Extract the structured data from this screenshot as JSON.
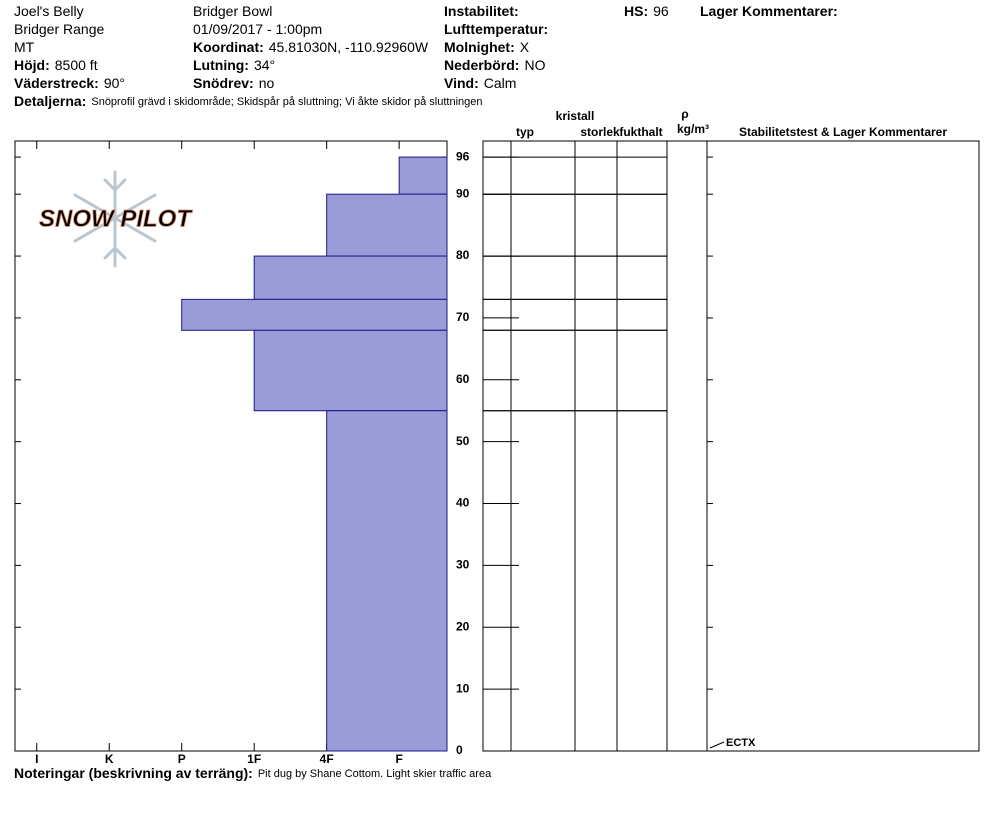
{
  "header": {
    "columns": [
      [
        {
          "value": "Joel's Belly"
        },
        {
          "value": "Bridger Range"
        },
        {
          "value": "MT"
        },
        {
          "label": "Höjd:",
          "value": "8500 ft"
        },
        {
          "label": "Väderstreck:",
          "value": "90°"
        }
      ],
      [
        {
          "value": "Bridger Bowl"
        },
        {
          "value": "01/09/2017 - 1:00pm"
        },
        {
          "label": "Koordinat:",
          "value": "45.81030N, -110.92960W"
        },
        {
          "label": "Lutning:",
          "value": "34°"
        },
        {
          "label": "Snödrev:",
          "value": "no"
        }
      ],
      [
        {
          "label": "Instabilitet:"
        },
        {
          "label": "Lufttemperatur:"
        },
        {
          "label": "Molnighet:",
          "value": "X"
        },
        {
          "label": "Nederbörd:",
          "value": "NO"
        },
        {
          "label": "Vind:",
          "value": "Calm"
        }
      ],
      [
        {
          "label": "HS:",
          "value": "96"
        }
      ],
      [
        {
          "label": "Lager Kommentarer:"
        }
      ]
    ],
    "details": {
      "label": "Detaljerna:",
      "value": "Snöprofil grävd i skidområde;  Skidspår på sluttning;  Vi åkte skidor på sluttningen"
    },
    "notes": {
      "label": "Noteringar (beskrivning av terräng):",
      "value": "Pit dug by Shane Cottom. Light skier traffic area"
    },
    "logo": "SNOW PILOT"
  },
  "chart_data": {
    "type": "snowprofile",
    "color": "#9b9bd7",
    "edge_color": "#1a1a8a",
    "xlim": [
      6.3,
      0.34
    ],
    "xticks": [
      {
        "value": 6,
        "label": "I"
      },
      {
        "value": 5,
        "label": "K"
      },
      {
        "value": 4,
        "label": "P"
      },
      {
        "value": 3,
        "label": "1F"
      },
      {
        "value": 2,
        "label": "4F"
      },
      {
        "value": 1,
        "label": "F"
      }
    ],
    "ylim": [
      0,
      98.6
    ],
    "yticks": [
      0,
      10,
      20,
      30,
      40,
      50,
      60,
      70,
      80,
      90,
      96
    ],
    "layers": [
      {
        "top": 96,
        "bottom": 90,
        "hardness": 1
      },
      {
        "top": 90,
        "bottom": 80,
        "hardness": 2
      },
      {
        "top": 80,
        "bottom": 73,
        "hardness": 3
      },
      {
        "top": 73,
        "bottom": 68,
        "hardness": 4
      },
      {
        "top": 68,
        "bottom": 55,
        "hardness": 3
      },
      {
        "top": 55,
        "bottom": 0,
        "hardness": 2
      }
    ],
    "table_headers": [
      "typ",
      "kristall",
      "storlek",
      "fukthalt",
      "ρ",
      "kg/m³",
      "Stabilitetstest & Lager Kommentarer"
    ],
    "stability_tests": [
      {
        "name": "ECTX",
        "height": 0
      }
    ]
  }
}
